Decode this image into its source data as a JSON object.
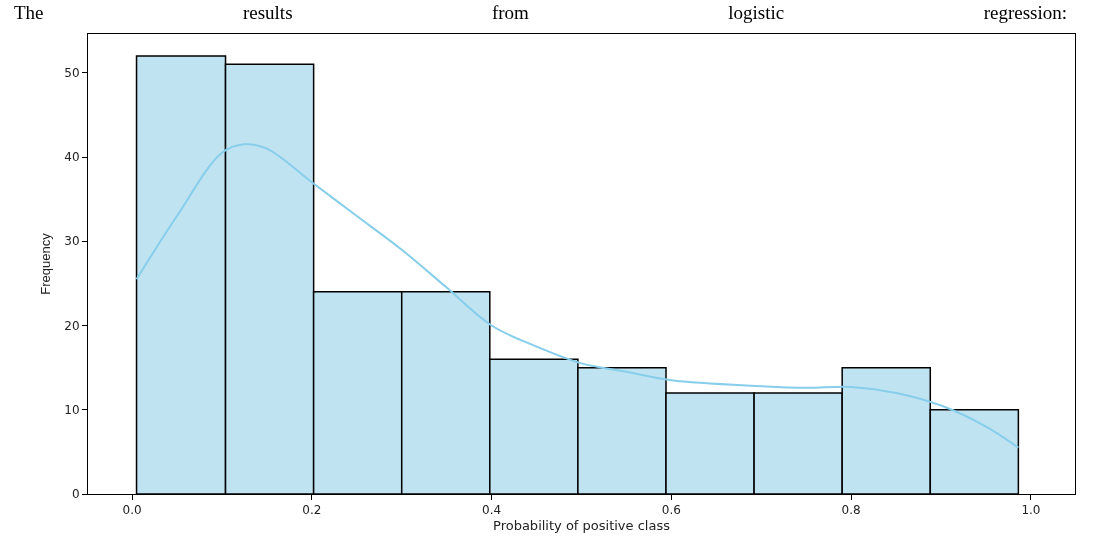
{
  "chart_data": {
    "type": "histogram",
    "title": "The results from logistic regression:",
    "xlabel": "Probability of positive class",
    "ylabel": "Frequency",
    "bins": [
      0.005,
      0.104,
      0.202,
      0.3,
      0.398,
      0.496,
      0.594,
      0.692,
      0.79,
      0.888,
      0.986
    ],
    "values": [
      52,
      51,
      24,
      24,
      16,
      15,
      12,
      12,
      15,
      10
    ],
    "color": "#c0e3f1",
    "series": [
      {
        "type": "line",
        "color": "#87ceeb",
        "x": [
          0.005,
          0.05,
          0.1,
          0.125,
          0.15,
          0.2,
          0.25,
          0.3,
          0.35,
          0.4,
          0.45,
          0.5,
          0.55,
          0.6,
          0.7,
          0.75,
          0.8,
          0.85,
          0.9,
          0.95,
          0.986
        ],
        "values": [
          25.5,
          33,
          40.5,
          41.5,
          41,
          37,
          33,
          29,
          24.5,
          20,
          17.5,
          15.5,
          14.5,
          13.5,
          12.8,
          12.6,
          12.7,
          12,
          10.5,
          8,
          5.5
        ]
      }
    ],
    "xlim": [
      -0.049,
      1.049
    ],
    "xticks": [
      {
        "value": 0,
        "label": "0.0"
      },
      0.2,
      0.4,
      0.6,
      0.8,
      {
        "value": 1,
        "label": "1.0"
      }
    ],
    "ylim": [
      0,
      54.6
    ],
    "yticks": [
      0,
      10,
      20,
      30,
      40,
      50
    ],
    "grid": false
  }
}
